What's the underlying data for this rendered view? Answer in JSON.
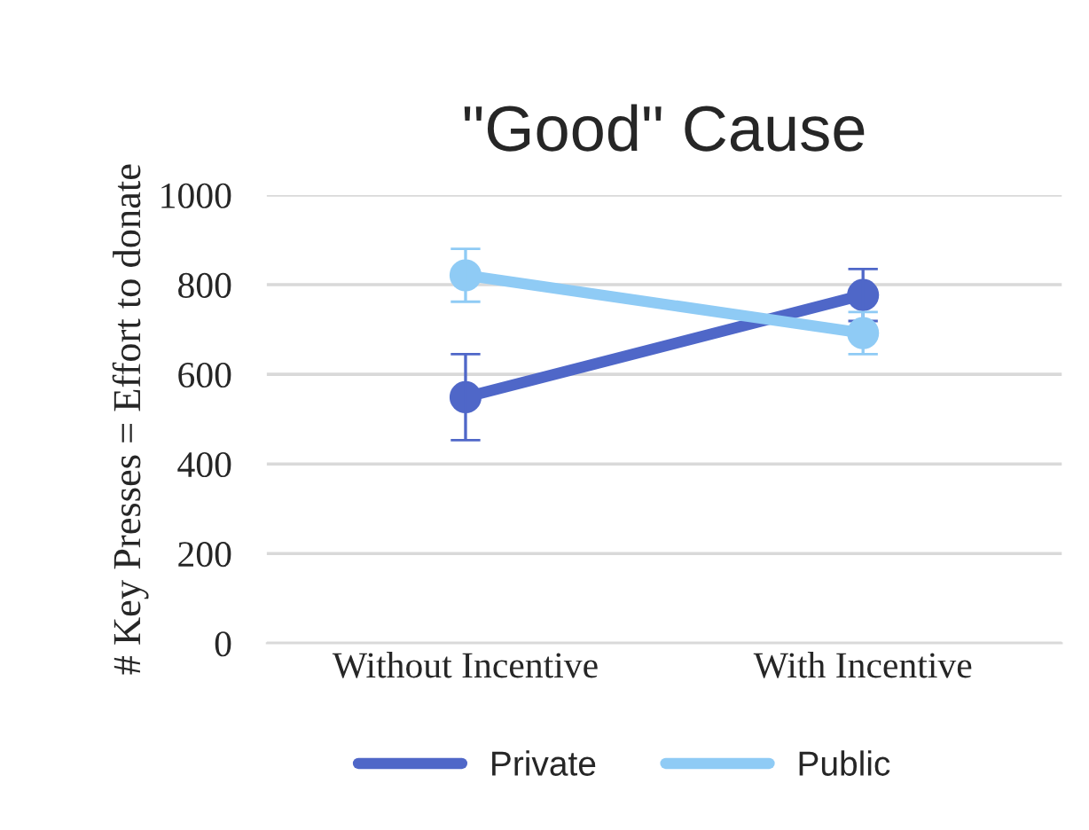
{
  "chart_data": {
    "type": "line",
    "title": "\"Good\" Cause",
    "ylabel": "# Key Presses = Effort to donate",
    "categories": [
      "Without Incentive",
      "With Incentive"
    ],
    "series": [
      {
        "name": "Private",
        "color": "#4f67c8",
        "values": [
          549,
          777
        ],
        "errors": [
          96,
          58
        ]
      },
      {
        "name": "Public",
        "color": "#8fcbf5",
        "values": [
          821,
          692
        ],
        "errors": [
          59,
          47
        ]
      }
    ],
    "ylim": [
      0,
      1000
    ],
    "yticks": [
      0,
      200,
      400,
      600,
      800,
      1000
    ],
    "grid": "y",
    "legend": "bottom",
    "marker": "circle",
    "line_style": "solid"
  }
}
